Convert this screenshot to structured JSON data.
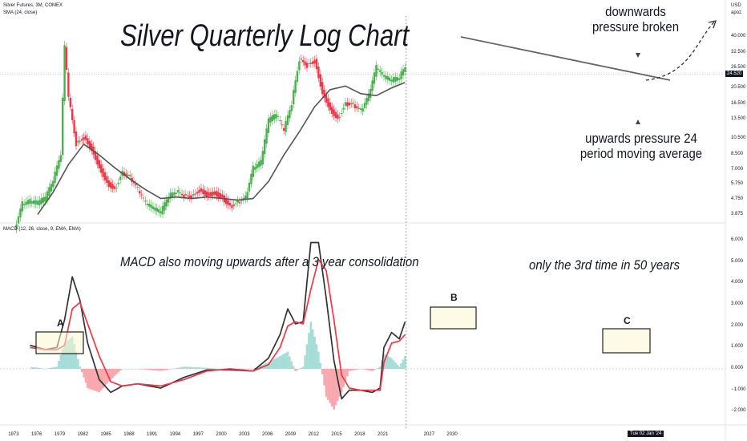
{
  "header": {
    "symbol_line": "Silver Futures, 3M, COMEX",
    "sma_line": "SMA (24, close)",
    "macd_line": "MACD (12, 26, close, 9, EMA, EMA)"
  },
  "annotations": {
    "title": "Silver Quarterly Log Chart",
    "downwards": "downwards\npressure broken",
    "upwards": "upwards pressure 24\nperiod moving average",
    "macd_note": "MACD also moving upwards after a 3 year consolidation",
    "third_time": "only the 3rd time in 50 years",
    "box_a": "A",
    "box_b": "B",
    "box_c": "C"
  },
  "price_axis": {
    "currency": "USD",
    "mode": "apoz",
    "last_price": "24.520",
    "ticks": [
      "40.000",
      "32.500",
      "26.500",
      "20.500",
      "16.500",
      "13.500",
      "10.500",
      "8.500",
      "7.000",
      "5.750",
      "4.750",
      "3.875"
    ]
  },
  "macd_axis": {
    "ticks": [
      "6.000",
      "5.000",
      "4.000",
      "3.000",
      "2.000",
      "1.000",
      "0.000",
      "−1.000",
      "−2.000"
    ]
  },
  "time_axis": {
    "ticks": [
      "1973",
      "1976",
      "1979",
      "1982",
      "1985",
      "1988",
      "1991",
      "1994",
      "1997",
      "2000",
      "2003",
      "2006",
      "2009",
      "2012",
      "2015",
      "2018",
      "2021",
      "2027",
      "2030"
    ],
    "current_date": "Tue 02 Jan '24"
  },
  "colors": {
    "up": "#4caf50",
    "down": "#f23645",
    "sma": "#555555",
    "macd": "#333333",
    "signal": "#f23645",
    "hist_pos": "#a6ddd6",
    "hist_neg": "#f7a9ae",
    "box_fill": "#fbf5d0"
  },
  "chart_data": [
    {
      "type": "candlestick",
      "scale": "log",
      "series": [
        {
          "name": "Silver Futures, 3M, COMEX",
          "x": [
            1973,
            1974,
            1975,
            1976,
            1977,
            1978,
            1979,
            1979.5,
            1980,
            1981,
            1982,
            1983,
            1984,
            1985,
            1986,
            1987,
            1988,
            1989,
            1990,
            1991,
            1992,
            1993,
            1994,
            1995,
            1996,
            1997,
            1998,
            1999,
            2000,
            2001,
            2002,
            2003,
            2004,
            2005,
            2006,
            2007,
            2008,
            2009,
            2010,
            2011,
            2012,
            2013,
            2014,
            2015,
            2016,
            2017,
            2018,
            2019,
            2020,
            2021,
            2022,
            2023,
            2023.75
          ],
          "close": [
            3.2,
            4.4,
            4.5,
            4.4,
            4.7,
            5.9,
            8.5,
            35,
            18,
            10,
            11,
            9.5,
            7.5,
            6.1,
            5.5,
            6.8,
            6.3,
            5.3,
            4.4,
            4.1,
            3.9,
            4.8,
            5.2,
            5.0,
            5.0,
            5.5,
            5.2,
            5.3,
            5.0,
            4.4,
            4.6,
            4.8,
            7.0,
            7.5,
            13,
            14,
            11.5,
            16.5,
            30,
            28,
            30,
            20,
            16,
            14,
            17,
            16.5,
            15,
            18,
            26,
            23,
            22,
            23,
            26.5
          ]
        },
        {
          "name": "SMA (24, close)",
          "x": [
            1976,
            1978,
            1980,
            1982,
            1984,
            1986,
            1988,
            1990,
            1992,
            1994,
            1996,
            1998,
            2000,
            2002,
            2004,
            2006,
            2008,
            2010,
            2012,
            2014,
            2016,
            2018,
            2020,
            2022,
            2023.75
          ],
          "values": [
            3.9,
            5.2,
            7.5,
            9.8,
            8.5,
            7.2,
            6.2,
            5.4,
            4.8,
            4.9,
            4.8,
            4.9,
            4.8,
            4.7,
            4.8,
            6.0,
            8.5,
            11.5,
            16,
            20,
            21,
            19,
            18.5,
            20.5,
            22
          ]
        }
      ],
      "price_ticks": [
        40,
        32.5,
        26.5,
        20.5,
        16.5,
        13.5,
        10.5,
        8.5,
        7,
        5.75,
        4.75,
        3.875
      ],
      "last_price": 24.52
    },
    {
      "type": "line",
      "title": "MACD (12, 26, close, 9, EMA, EMA)",
      "ylim": [
        -2.5,
        6.5
      ],
      "x": [
        1975,
        1977,
        1978.5,
        1979.5,
        1980.5,
        1981.5,
        1982.5,
        1984,
        1985.5,
        1987,
        1989,
        1992,
        1995,
        1998,
        2001,
        2004,
        2006,
        2007.5,
        2008.5,
        2009.5,
        2010.5,
        2011.5,
        2012.5,
        2013.5,
        2014.5,
        2015.5,
        2016.5,
        2018,
        2019.5,
        2020.5,
        2021,
        2022,
        2023,
        2023.75
      ],
      "series": [
        {
          "name": "MACD",
          "values": [
            1.1,
            0.9,
            1.0,
            2.3,
            4.3,
            3.2,
            1.2,
            -0.5,
            -1.1,
            -0.8,
            -0.7,
            -0.9,
            -0.4,
            -0.05,
            -0.05,
            -0.1,
            0.5,
            1.6,
            2.8,
            2.1,
            2.2,
            5.9,
            5.9,
            3.3,
            0.4,
            -1.4,
            -1.0,
            -1.0,
            -1.1,
            -0.9,
            1.0,
            1.7,
            1.4,
            2.2
          ]
        },
        {
          "name": "Signal",
          "values": [
            1.0,
            0.9,
            0.9,
            1.1,
            2.8,
            3.1,
            2.1,
            0.6,
            -0.6,
            -0.8,
            -0.7,
            -0.8,
            -0.5,
            -0.1,
            0.0,
            -0.1,
            0.2,
            1.0,
            2.0,
            2.2,
            2.1,
            3.7,
            5.1,
            4.6,
            2.3,
            -0.3,
            -0.9,
            -1.0,
            -1.0,
            -1.0,
            0.3,
            1.2,
            1.3,
            1.6
          ]
        },
        {
          "name": "Histogram",
          "values": [
            0.1,
            0.0,
            0.1,
            1.2,
            1.5,
            0.1,
            -0.9,
            -1.1,
            -0.5,
            0.0,
            0.0,
            -0.1,
            0.1,
            0.05,
            -0.05,
            0.0,
            0.3,
            0.6,
            0.8,
            -0.1,
            0.1,
            2.2,
            0.8,
            -1.3,
            -1.9,
            -1.1,
            -0.1,
            0.0,
            -0.1,
            0.1,
            0.7,
            0.5,
            0.1,
            0.6
          ]
        }
      ],
      "ticks": [
        6,
        5,
        4,
        3,
        2,
        1,
        0,
        -1,
        -2
      ]
    }
  ]
}
